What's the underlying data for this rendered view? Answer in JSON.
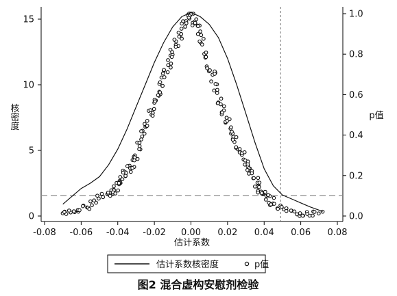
{
  "chart_data": {
    "type": "line+scatter",
    "caption": "图2 混合虚构安慰剂检验",
    "xlabel": "估计系数",
    "ylabel_left": "核密度",
    "ylabel_right": "p值",
    "xlim": [
      -0.08,
      0.08
    ],
    "ylim_left": [
      0,
      15.5
    ],
    "ylim_right": [
      0,
      1.03
    ],
    "x_ticks": [
      -0.08,
      -0.06,
      -0.04,
      -0.02,
      0.0,
      0.02,
      0.04,
      0.06,
      0.08
    ],
    "x_tick_labels": [
      "-0.08",
      "-0.06",
      "-0.04",
      "-0.02",
      "0.00",
      "0.02",
      "0.04",
      "0.06",
      "0.08"
    ],
    "y_left_ticks": [
      0,
      5,
      10,
      15
    ],
    "y_left_tick_labels": [
      "0",
      "5",
      "10",
      "15"
    ],
    "y_right_ticks": [
      0.0,
      0.2,
      0.4,
      0.6,
      0.8,
      1.0
    ],
    "y_right_tick_labels": [
      "0.0",
      "0.2",
      "0.4",
      "0.6",
      "0.8",
      "1.0"
    ],
    "reference_lines": {
      "vertical_x": 0.049,
      "horizontal_p": 0.1
    },
    "legend": [
      "估计系数核密度",
      "p值"
    ],
    "grid": false,
    "density_curve": {
      "x": [
        -0.07,
        -0.065,
        -0.06,
        -0.055,
        -0.05,
        -0.045,
        -0.04,
        -0.035,
        -0.03,
        -0.025,
        -0.02,
        -0.015,
        -0.01,
        -0.005,
        0.0,
        0.005,
        0.01,
        0.015,
        0.02,
        0.025,
        0.03,
        0.035,
        0.04,
        0.045,
        0.05,
        0.055,
        0.06,
        0.065,
        0.072
      ],
      "y": [
        0.9,
        1.5,
        2.1,
        2.5,
        3.0,
        3.9,
        5.1,
        6.6,
        8.3,
        10.0,
        11.7,
        13.2,
        14.4,
        15.2,
        15.5,
        15.2,
        14.6,
        13.6,
        12.0,
        10.0,
        7.8,
        5.6,
        3.6,
        2.3,
        1.6,
        1.3,
        1.0,
        0.7,
        0.35
      ]
    },
    "pvalue_points": {
      "x": [
        -0.069,
        -0.068,
        -0.066,
        -0.064,
        -0.062,
        -0.06,
        -0.058,
        -0.056,
        -0.054,
        -0.052,
        -0.05,
        -0.048,
        -0.046,
        -0.044,
        -0.042,
        -0.04,
        -0.038,
        -0.036,
        -0.034,
        -0.032,
        -0.03,
        -0.028,
        -0.026,
        -0.024,
        -0.022,
        -0.02,
        -0.018,
        -0.016,
        -0.014,
        -0.012,
        -0.01,
        -0.008,
        -0.006,
        -0.004,
        -0.002,
        0.0,
        0.002,
        0.004,
        0.006,
        0.008,
        0.01,
        0.012,
        0.014,
        0.016,
        0.018,
        0.02,
        0.022,
        0.024,
        0.026,
        0.028,
        0.03,
        0.032,
        0.034,
        0.036,
        0.038,
        0.04,
        0.042,
        0.044,
        0.046,
        0.048,
        0.05,
        0.052,
        0.054,
        0.056,
        0.058,
        0.06,
        0.062,
        0.064,
        0.066,
        0.068,
        0.071
      ],
      "p": [
        0.02,
        0.01,
        0.02,
        0.03,
        0.03,
        0.04,
        0.05,
        0.04,
        0.06,
        0.07,
        0.09,
        0.1,
        0.11,
        0.12,
        0.13,
        0.15,
        0.17,
        0.2,
        0.23,
        0.26,
        0.3,
        0.35,
        0.4,
        0.45,
        0.5,
        0.55,
        0.6,
        0.66,
        0.71,
        0.75,
        0.81,
        0.86,
        0.9,
        0.94,
        0.97,
        1.0,
        0.96,
        0.92,
        0.87,
        0.8,
        0.74,
        0.69,
        0.63,
        0.57,
        0.52,
        0.47,
        0.42,
        0.38,
        0.34,
        0.3,
        0.26,
        0.23,
        0.2,
        0.17,
        0.14,
        0.11,
        0.09,
        0.07,
        0.05,
        0.04,
        0.04,
        0.03,
        0.02,
        0.02,
        0.01,
        0.02,
        0.01,
        0.02,
        0.01,
        0.02,
        0.01
      ]
    }
  }
}
